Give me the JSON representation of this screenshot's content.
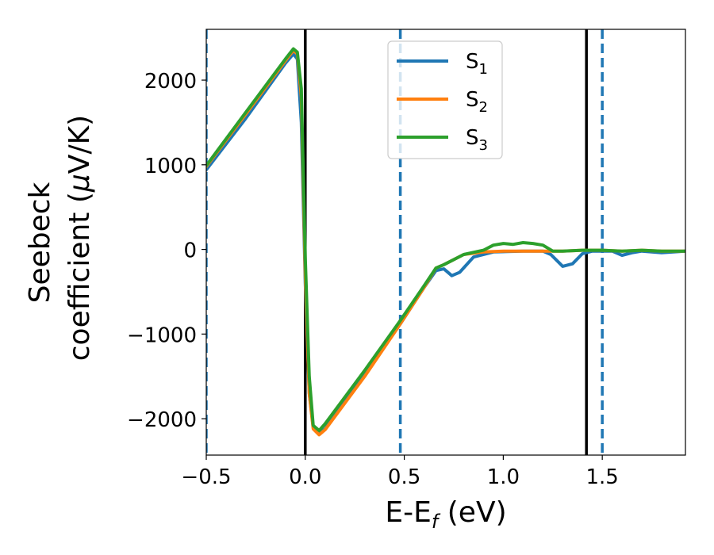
{
  "chart_data": {
    "type": "line",
    "xlabel": "E-E",
    "xlabel_sub": "f",
    "xlabel_unit": " (eV)",
    "ylabel_line1": "Seebeck",
    "ylabel_line2_pre": "coefficient  (",
    "ylabel_mu": "μ",
    "ylabel_line2_post": "V/K)",
    "xlim": [
      -0.5,
      1.92
    ],
    "ylim": [
      -2430,
      2600
    ],
    "xticks": [
      {
        "value": -0.5,
        "label": "−0.5"
      },
      {
        "value": 0.0,
        "label": "0.0"
      },
      {
        "value": 0.5,
        "label": "0.5"
      },
      {
        "value": 1.0,
        "label": "1.0"
      },
      {
        "value": 1.5,
        "label": "1.5"
      }
    ],
    "yticks": [
      {
        "value": 2000,
        "label": "2000"
      },
      {
        "value": 1000,
        "label": "1000"
      },
      {
        "value": 0,
        "label": "0"
      },
      {
        "value": -1000,
        "label": "−1000"
      },
      {
        "value": -2000,
        "label": "−2000"
      }
    ],
    "grid": false,
    "legend_position": "top-center",
    "vertical_lines": [
      {
        "x": 0.0,
        "style": "solid",
        "color": "#000000"
      },
      {
        "x": 1.42,
        "style": "solid",
        "color": "#000000"
      },
      {
        "x": -0.5,
        "style": "dashed",
        "color": "#1f77b4"
      },
      {
        "x": 0.48,
        "style": "dashed",
        "color": "#1f77b4"
      },
      {
        "x": 1.5,
        "style": "dashed",
        "color": "#1f77b4"
      }
    ],
    "series": [
      {
        "name": "S",
        "sub": "1",
        "color": "#1f77b4",
        "points": [
          [
            -0.5,
            940
          ],
          [
            -0.3,
            1550
          ],
          [
            -0.1,
            2200
          ],
          [
            -0.06,
            2310
          ],
          [
            -0.04,
            2250
          ],
          [
            -0.02,
            1500
          ],
          [
            0.0,
            -400
          ],
          [
            0.02,
            -1700
          ],
          [
            0.04,
            -2100
          ],
          [
            0.07,
            -2180
          ],
          [
            0.1,
            -2120
          ],
          [
            0.3,
            -1480
          ],
          [
            0.48,
            -880
          ],
          [
            0.6,
            -450
          ],
          [
            0.66,
            -250
          ],
          [
            0.7,
            -230
          ],
          [
            0.74,
            -310
          ],
          [
            0.78,
            -270
          ],
          [
            0.85,
            -90
          ],
          [
            0.95,
            -30
          ],
          [
            1.1,
            -20
          ],
          [
            1.2,
            -20
          ],
          [
            1.24,
            -60
          ],
          [
            1.3,
            -200
          ],
          [
            1.35,
            -170
          ],
          [
            1.4,
            -50
          ],
          [
            1.45,
            -20
          ],
          [
            1.55,
            -20
          ],
          [
            1.6,
            -70
          ],
          [
            1.65,
            -40
          ],
          [
            1.7,
            -20
          ],
          [
            1.8,
            -40
          ],
          [
            1.92,
            -20
          ]
        ]
      },
      {
        "name": "S",
        "sub": "2",
        "color": "#ff7f0e",
        "points": [
          [
            -0.5,
            980
          ],
          [
            -0.3,
            1600
          ],
          [
            -0.1,
            2230
          ],
          [
            -0.06,
            2350
          ],
          [
            -0.04,
            2310
          ],
          [
            -0.02,
            1800
          ],
          [
            0.0,
            -300
          ],
          [
            0.02,
            -1700
          ],
          [
            0.04,
            -2120
          ],
          [
            0.07,
            -2190
          ],
          [
            0.1,
            -2130
          ],
          [
            0.3,
            -1500
          ],
          [
            0.48,
            -880
          ],
          [
            0.6,
            -450
          ],
          [
            0.66,
            -220
          ],
          [
            0.7,
            -180
          ],
          [
            0.8,
            -60
          ],
          [
            0.9,
            -30
          ],
          [
            1.0,
            -20
          ],
          [
            1.1,
            -20
          ],
          [
            1.2,
            -20
          ],
          [
            1.3,
            -20
          ],
          [
            1.4,
            -10
          ],
          [
            1.5,
            -10
          ],
          [
            1.6,
            -20
          ],
          [
            1.7,
            -10
          ],
          [
            1.8,
            -20
          ],
          [
            1.92,
            -20
          ]
        ]
      },
      {
        "name": "S",
        "sub": "3",
        "color": "#2ca02c",
        "points": [
          [
            -0.5,
            990
          ],
          [
            -0.3,
            1620
          ],
          [
            -0.1,
            2250
          ],
          [
            -0.06,
            2370
          ],
          [
            -0.04,
            2330
          ],
          [
            -0.02,
            1900
          ],
          [
            0.0,
            -100
          ],
          [
            0.02,
            -1500
          ],
          [
            0.04,
            -2080
          ],
          [
            0.07,
            -2140
          ],
          [
            0.1,
            -2060
          ],
          [
            0.3,
            -1430
          ],
          [
            0.48,
            -840
          ],
          [
            0.6,
            -430
          ],
          [
            0.66,
            -220
          ],
          [
            0.7,
            -180
          ],
          [
            0.8,
            -60
          ],
          [
            0.9,
            -10
          ],
          [
            0.95,
            50
          ],
          [
            1.0,
            70
          ],
          [
            1.05,
            60
          ],
          [
            1.1,
            80
          ],
          [
            1.15,
            70
          ],
          [
            1.2,
            50
          ],
          [
            1.25,
            -20
          ],
          [
            1.3,
            -20
          ],
          [
            1.4,
            -10
          ],
          [
            1.5,
            -10
          ],
          [
            1.6,
            -20
          ],
          [
            1.7,
            -10
          ],
          [
            1.8,
            -20
          ],
          [
            1.92,
            -20
          ]
        ]
      }
    ]
  }
}
